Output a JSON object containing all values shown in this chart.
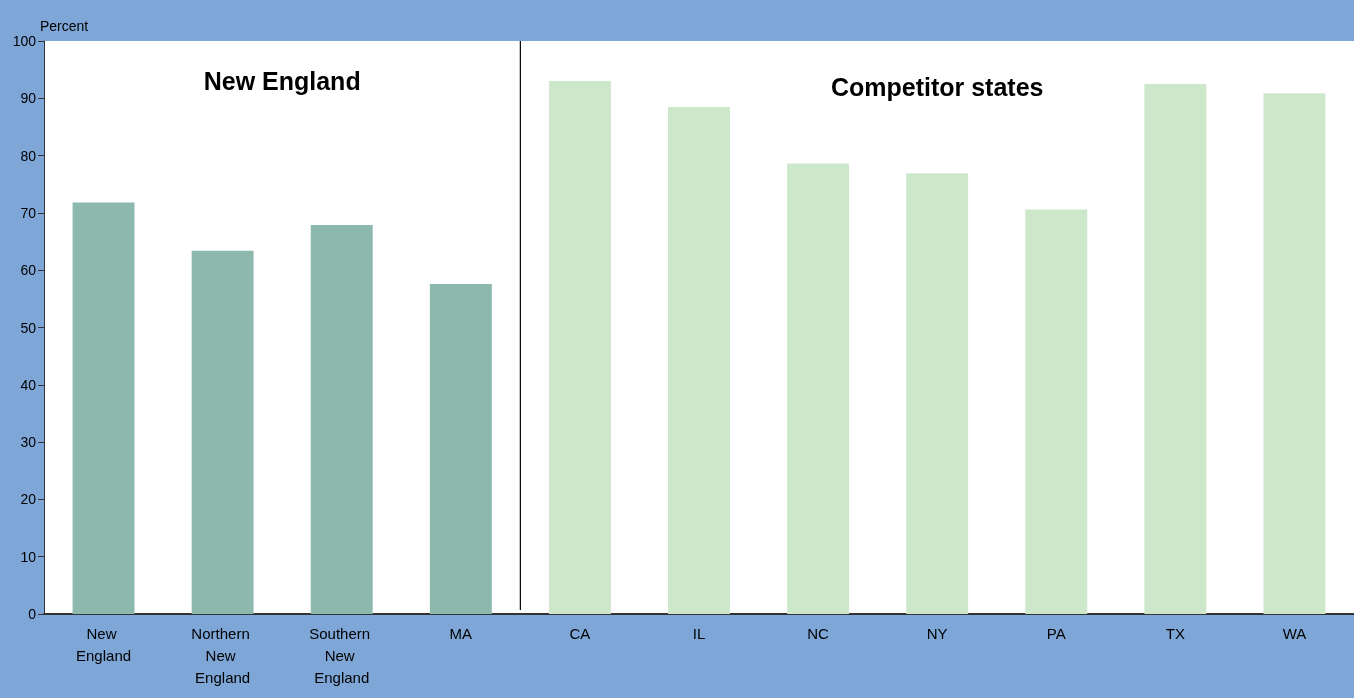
{
  "chart_data": {
    "type": "bar",
    "ylabel": "Percent",
    "categories": [
      "New England",
      "Northern New England",
      "Southern New England",
      "MA",
      "CA",
      "IL",
      "NC",
      "NY",
      "PA",
      "TX",
      "WA"
    ],
    "values": [
      71.8,
      63.4,
      67.9,
      57.6,
      93.0,
      88.5,
      78.6,
      76.9,
      70.6,
      92.5,
      90.9
    ],
    "colors": [
      "#8db8ad",
      "#8db8ad",
      "#8db8ad",
      "#8db8ad",
      "#cde7cb",
      "#cde7cb",
      "#cde7cb",
      "#cde7cb",
      "#cde7cb",
      "#cde7cb",
      "#cde7cb"
    ],
    "ylim": [
      0,
      100
    ],
    "yticks": [
      0,
      10,
      20,
      30,
      40,
      50,
      60,
      70,
      80,
      90,
      100
    ],
    "annotations": [
      "New England",
      "Competitor states"
    ],
    "grid": false
  }
}
